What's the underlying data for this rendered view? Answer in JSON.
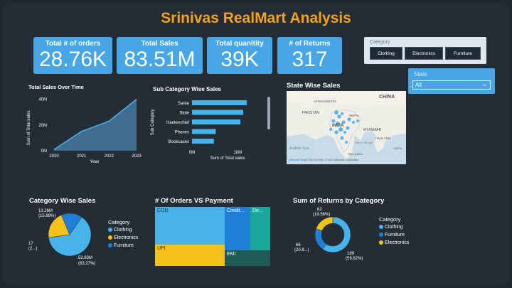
{
  "title": "Srinivas RealMart Analysis",
  "kpis": [
    {
      "label": "Total # of orders",
      "value": "28.76K"
    },
    {
      "label": "Total Sales",
      "value": "83.51M"
    },
    {
      "label": "Total quanitity",
      "value": "39K"
    },
    {
      "label": "# of Returns",
      "value": "317"
    }
  ],
  "category_slicer": {
    "label": "Category",
    "options": [
      "Clothing",
      "Electronics",
      "Furniture"
    ]
  },
  "state_slicer": {
    "label": "State",
    "value": "All"
  },
  "colors": {
    "clothing": "#48b3ea",
    "electronics": "#f5c21b",
    "furniture": "#1f7fd6",
    "accent": "#47a7e6",
    "title": "#f5a31a"
  },
  "sales_over_time": {
    "title": "Total Sales Over Time",
    "xlabel": "Year",
    "ylabel": "Sum of Total sales",
    "yticks": [
      "0M",
      "20M",
      "40M"
    ],
    "chart_data": {
      "type": "area",
      "x": [
        "2020",
        "2021",
        "2022",
        "2023"
      ],
      "values": [
        1,
        15,
        23,
        40
      ],
      "ylim": [
        0,
        42
      ]
    }
  },
  "subcategory_sales": {
    "title": "Sub Category Wise Sales",
    "xlabel": "Sum of Total sales",
    "ylabel": "Sub Category",
    "xticks": [
      "0M",
      "10M"
    ],
    "chart_data": {
      "type": "bar",
      "categories": [
        "Saree",
        "Stole",
        "Hankerchief",
        "Phones",
        "Bookcases"
      ],
      "values": [
        12.0,
        11.2,
        10.6,
        5.2,
        4.8
      ],
      "xlim": [
        0,
        14
      ]
    }
  },
  "state_map": {
    "title": "State Wise Sales",
    "labels": [
      "CHINA",
      "AFGHANISTAN",
      "PAKISTAN",
      "NEPAL",
      "INDIA",
      "MYANMAR",
      "THAILAND",
      "Arabian Sea",
      "SRI LANKA",
      "VIETN",
      "Bay of Bengal"
    ],
    "attribution": "© 2023 TomTom, © 2024 Microsoft Corporation",
    "brand": "Microsoft Bing"
  },
  "category_sales": {
    "title": "Category Wise Sales",
    "legend_title": "Category",
    "legend": [
      "Clothing",
      "Electronics",
      "Furniture"
    ],
    "chart_data": {
      "type": "pie",
      "categories": [
        "Clothing",
        "Electronics",
        "Furniture"
      ],
      "values": [
        63.27,
        20.85,
        15.88
      ],
      "labels": [
        {
          "value": "52.83M",
          "pct": "(63.27%)"
        },
        {
          "value": "17",
          "pct": "(2...)"
        },
        {
          "value": "13.26M",
          "pct": "(15.88%)"
        }
      ]
    }
  },
  "orders_vs_payment": {
    "title": "# Of Orders VS Payment",
    "chart_data": {
      "type": "treemap",
      "categories": [
        "COD",
        "UPI",
        "Credit...",
        "EMI",
        "De..."
      ],
      "values": [
        45,
        20,
        18,
        6,
        11
      ]
    }
  },
  "returns_by_category": {
    "title": "Sum of Returns by Category",
    "legend_title": "Category",
    "legend": [
      "Clothing",
      "Furniture",
      "Electronics"
    ],
    "chart_data": {
      "type": "donut",
      "categories": [
        "Clothing",
        "Furniture",
        "Electronics"
      ],
      "values": [
        189,
        66,
        62
      ],
      "labels": [
        {
          "value": "189",
          "pct": "(59.62%)"
        },
        {
          "value": "66",
          "pct": "(20.8...)"
        },
        {
          "value": "62",
          "pct": "(19.56%)"
        }
      ]
    }
  }
}
